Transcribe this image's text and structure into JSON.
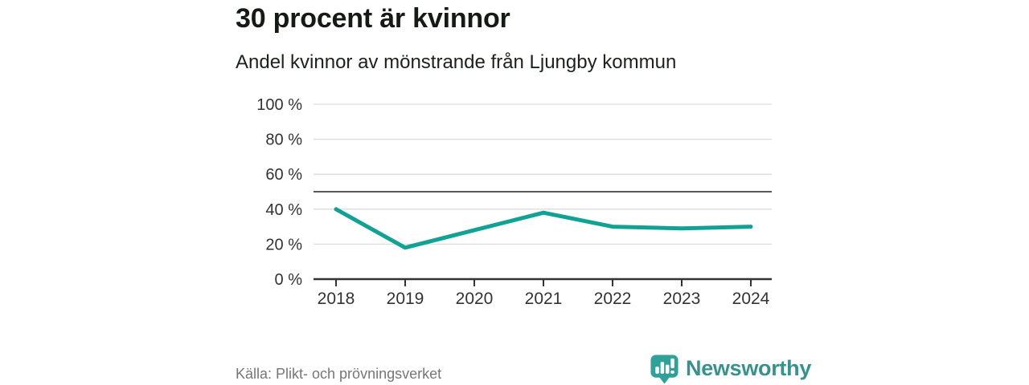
{
  "page": {
    "title": "30 procent är kvinnor",
    "subtitle": "Andel kvinnor av mönstrande från Ljungby kommun",
    "source": "Källa: Plikt- och prövningsverket",
    "brand": "Newsworthy"
  },
  "colors": {
    "line": "#12a294",
    "grid": "#dcdcdc",
    "reference": "#595959",
    "axis": "#333333",
    "title_text": "#161a16",
    "muted_text": "#767676",
    "brand": "#37928b"
  },
  "chart_data": {
    "type": "line",
    "title": "30 procent är kvinnor",
    "subtitle": "Andel kvinnor av mönstrande från Ljungby kommun",
    "x": [
      2018,
      2019,
      2020,
      2021,
      2022,
      2023,
      2024
    ],
    "series": [
      {
        "name": "Andel kvinnor av mönstrande",
        "values": [
          40,
          18,
          28,
          38,
          30,
          29,
          30
        ]
      }
    ],
    "xlabel": "",
    "ylabel": "",
    "ylim": [
      0,
      100
    ],
    "yticks": [
      0,
      20,
      40,
      60,
      80,
      100
    ],
    "ytick_format": "{v} %",
    "reference_line": 50,
    "grid": "horizontal",
    "legend": "none",
    "unit": "%"
  }
}
